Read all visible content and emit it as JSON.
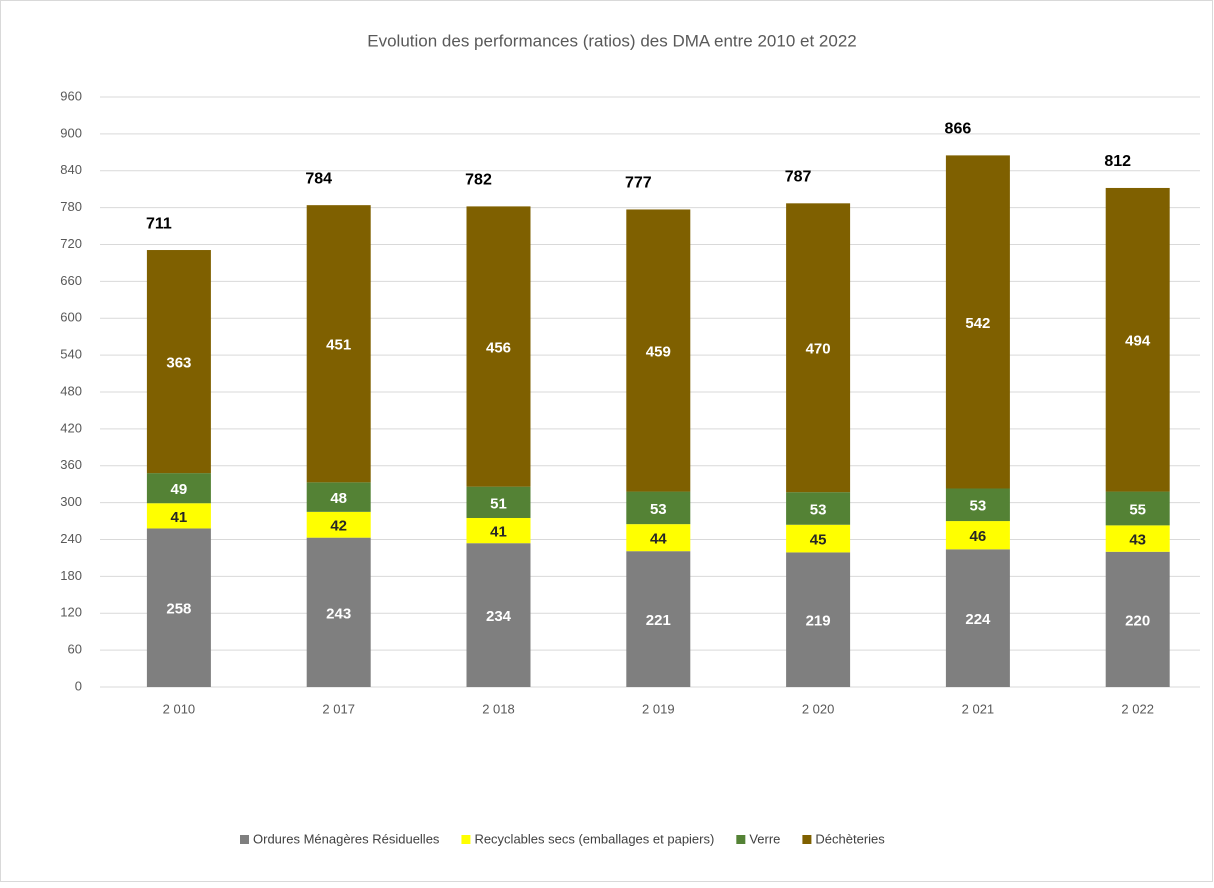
{
  "chart_data": {
    "type": "stacked_bar",
    "title": "Evolution des performances (ratios) des DMA  entre 2010 et 2022",
    "categories": [
      "2 010",
      "2 017",
      "2 018",
      "2 019",
      "2 020",
      "2 021",
      "2 022"
    ],
    "series": [
      {
        "name": "Ordures Ménagères Résiduelles",
        "color": "#7f7f7f",
        "values": [
          258,
          243,
          234,
          221,
          219,
          224,
          220
        ]
      },
      {
        "name": "Recyclables secs (emballages et papiers)",
        "color": "#ffff00",
        "values": [
          41,
          42,
          41,
          44,
          45,
          46,
          43
        ]
      },
      {
        "name": "Verre",
        "color": "#548235",
        "values": [
          49,
          48,
          51,
          53,
          53,
          53,
          55
        ]
      },
      {
        "name": "Déchèteries",
        "color": "#7f6000",
        "values": [
          363,
          451,
          456,
          459,
          470,
          542,
          494
        ]
      }
    ],
    "total_labels": [
      711,
      784,
      782,
      777,
      787,
      866,
      812
    ],
    "ylim": [
      0,
      960
    ],
    "yticks": [
      0,
      60,
      120,
      180,
      240,
      300,
      360,
      420,
      480,
      540,
      600,
      660,
      720,
      780,
      840,
      900,
      960
    ],
    "grid": true,
    "legend": "bottom"
  }
}
